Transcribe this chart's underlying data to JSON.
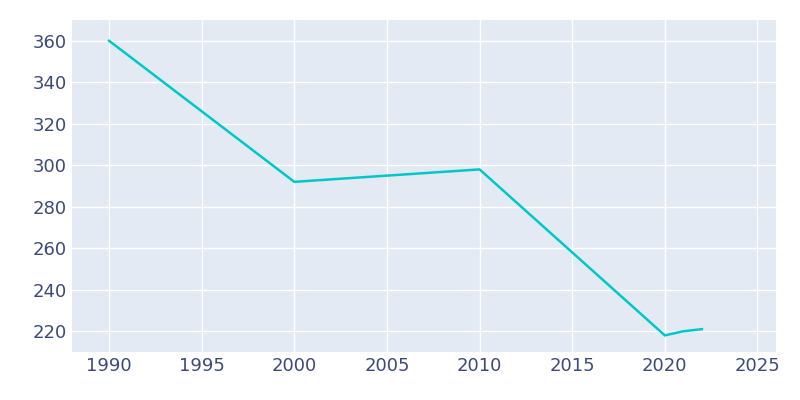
{
  "years": [
    1990,
    2000,
    2005,
    2010,
    2020,
    2021,
    2022
  ],
  "population": [
    360,
    292,
    295,
    298,
    218,
    220,
    221
  ],
  "line_color": "#00C8C8",
  "plot_bg_color": "#E3EAF4",
  "fig_bg_color": "#FFFFFF",
  "grid_color": "#FFFFFF",
  "tick_color": "#3B4A7A",
  "xlim": [
    1988,
    2026
  ],
  "ylim": [
    210,
    370
  ],
  "xticks": [
    1990,
    1995,
    2000,
    2005,
    2010,
    2015,
    2020,
    2025
  ],
  "yticks": [
    220,
    240,
    260,
    280,
    300,
    320,
    340,
    360
  ],
  "line_width": 1.8,
  "tick_fontsize": 13
}
